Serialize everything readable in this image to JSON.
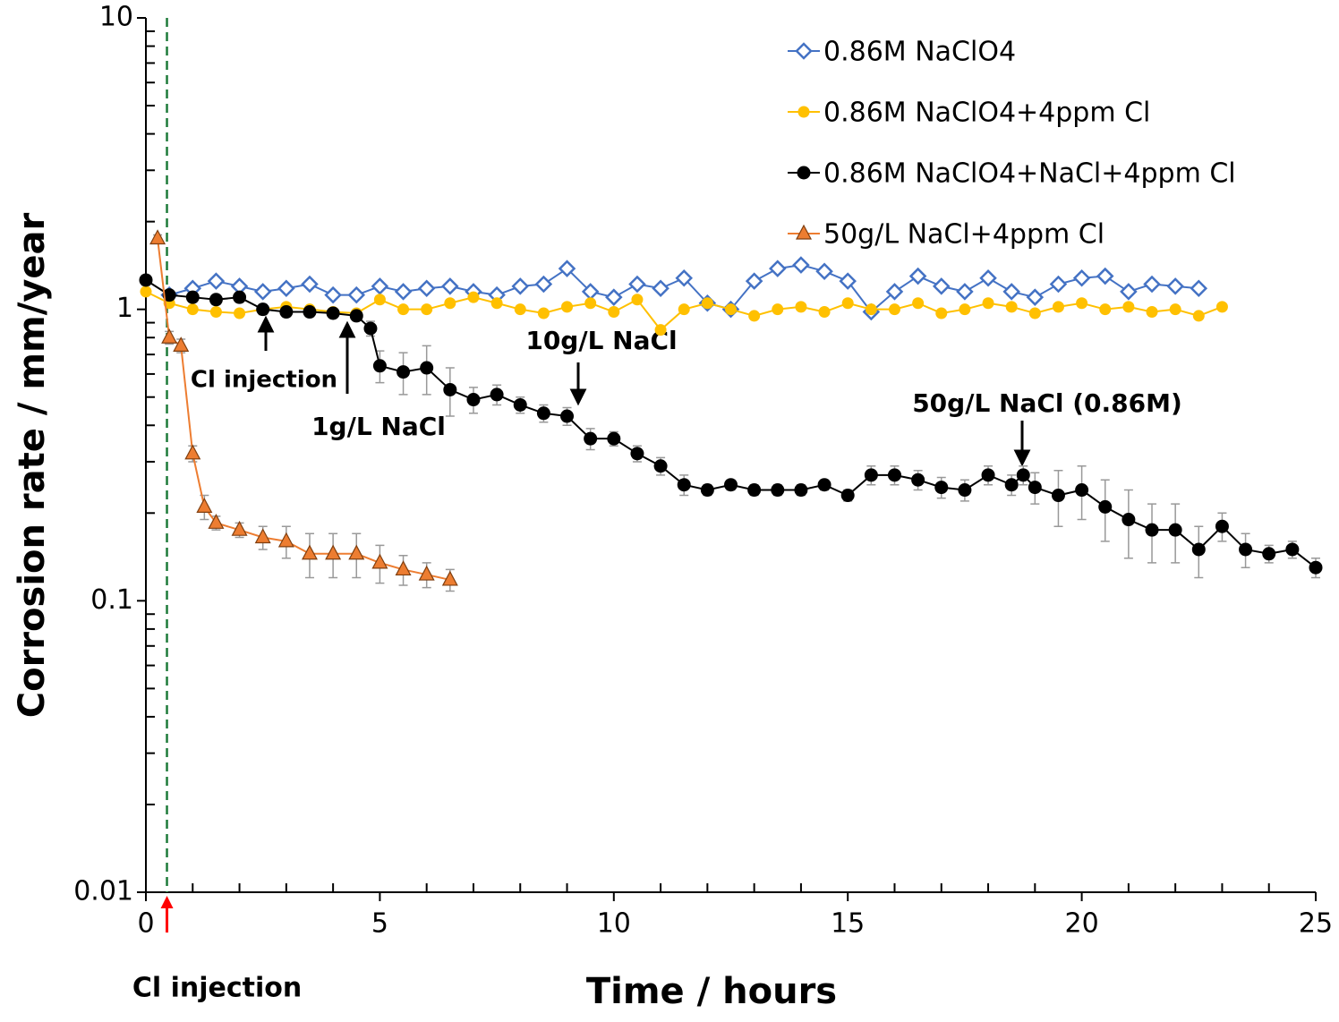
{
  "chart_data": {
    "type": "line",
    "xlabel": "Time / hours",
    "ylabel": "Corrosion rate / mm/year",
    "log_y": true,
    "xlim": [
      0,
      25
    ],
    "xticks": [
      0,
      5,
      10,
      15,
      20,
      25
    ],
    "ylim": [
      0.01,
      10
    ],
    "yticks": [
      0.01,
      0.1,
      1,
      10
    ],
    "legend": "top-right",
    "injection_line": {
      "x": 0.45,
      "color": "#1e7b3a",
      "label": "Cl injection",
      "label_color": "#ff0000"
    },
    "annotations": [
      "Cl injection",
      "1g/L NaCl",
      "10g/L NaCl",
      "50g/L NaCl (0.86M)"
    ],
    "series": [
      {
        "name": "0.86M NaClO4",
        "color": "#4472c4",
        "marker": "diamond",
        "x": [
          0.5,
          1,
          1.5,
          2,
          2.5,
          3,
          3.5,
          4,
          4.5,
          5,
          5.5,
          6,
          6.5,
          7,
          7.5,
          8,
          8.5,
          9,
          9.5,
          10,
          10.5,
          11,
          11.5,
          12,
          12.5,
          13,
          13.5,
          14,
          14.5,
          15,
          15.5,
          16,
          16.5,
          17,
          17.5,
          18,
          18.5,
          19,
          19.5,
          20,
          20.5,
          21,
          21.5,
          22,
          22.5
        ],
        "values": [
          1.12,
          1.18,
          1.25,
          1.2,
          1.15,
          1.18,
          1.22,
          1.12,
          1.12,
          1.2,
          1.15,
          1.18,
          1.2,
          1.15,
          1.12,
          1.2,
          1.22,
          1.38,
          1.15,
          1.1,
          1.22,
          1.18,
          1.28,
          1.05,
          1.0,
          1.25,
          1.38,
          1.42,
          1.35,
          1.25,
          0.98,
          1.15,
          1.3,
          1.2,
          1.15,
          1.28,
          1.15,
          1.1,
          1.22,
          1.28,
          1.3,
          1.15,
          1.22,
          1.2,
          1.18
        ]
      },
      {
        "name": "0.86M NaClO4+4ppm Cl",
        "color": "#ffc000",
        "marker": "circle",
        "x": [
          0,
          0.5,
          1,
          1.5,
          2,
          2.5,
          3,
          3.5,
          4,
          4.5,
          5,
          5.5,
          6,
          6.5,
          7,
          7.5,
          8,
          8.5,
          9,
          9.5,
          10,
          10.5,
          11,
          11.5,
          12,
          12.5,
          13,
          13.5,
          14,
          14.5,
          15,
          15.5,
          16,
          16.5,
          17,
          17.5,
          18,
          18.5,
          19,
          19.5,
          20,
          20.5,
          21,
          21.5,
          22,
          22.5,
          23
        ],
        "values": [
          1.15,
          1.05,
          1.0,
          0.98,
          0.97,
          1.0,
          1.02,
          1.0,
          0.98,
          0.97,
          1.08,
          1.0,
          1.0,
          1.05,
          1.1,
          1.05,
          1.0,
          0.97,
          1.02,
          1.05,
          0.98,
          1.08,
          0.85,
          1.0,
          1.05,
          1.0,
          0.95,
          1.0,
          1.02,
          0.98,
          1.05,
          1.0,
          1.0,
          1.05,
          0.97,
          1.0,
          1.05,
          1.02,
          0.97,
          1.02,
          1.05,
          1.0,
          1.02,
          0.98,
          1.0,
          0.95,
          1.02
        ]
      },
      {
        "name": "0.86M NaClO4+NaCl+4ppm Cl",
        "color": "#000000",
        "marker": "bigcircle",
        "x": [
          0,
          0.5,
          1,
          1.5,
          2,
          2.5,
          3,
          3.5,
          4,
          4.5,
          4.8,
          5,
          5.5,
          6,
          6.5,
          7,
          7.5,
          8,
          8.5,
          9,
          9.5,
          10,
          10.5,
          11,
          11.5,
          12,
          12.5,
          13,
          13.5,
          14,
          14.5,
          15,
          15.5,
          16,
          16.5,
          17,
          17.5,
          18,
          18.5,
          18.75,
          19,
          19.5,
          20,
          20.5,
          21,
          21.5,
          22,
          22.5,
          23,
          23.5,
          24,
          24.5,
          25
        ],
        "values": [
          1.26,
          1.12,
          1.1,
          1.08,
          1.1,
          1.0,
          0.98,
          0.98,
          0.97,
          0.95,
          0.86,
          0.64,
          0.61,
          0.63,
          0.53,
          0.49,
          0.51,
          0.47,
          0.44,
          0.43,
          0.36,
          0.36,
          0.32,
          0.29,
          0.25,
          0.24,
          0.25,
          0.24,
          0.24,
          0.24,
          0.25,
          0.23,
          0.27,
          0.27,
          0.26,
          0.245,
          0.24,
          0.27,
          0.25,
          0.27,
          0.245,
          0.23,
          0.24,
          0.21,
          0.19,
          0.175,
          0.175,
          0.15,
          0.18,
          0.15,
          0.145,
          0.15,
          0.13
        ],
        "errors": [
          0.05,
          0.04,
          0.04,
          0.04,
          0.04,
          0.04,
          0.03,
          0.03,
          0.03,
          0.03,
          0.05,
          0.08,
          0.1,
          0.12,
          0.1,
          0.05,
          0.04,
          0.03,
          0.03,
          0.03,
          0.03,
          0.02,
          0.02,
          0.02,
          0.02,
          0.01,
          0.01,
          0.01,
          0.01,
          0.01,
          0.01,
          0.01,
          0.02,
          0.02,
          0.02,
          0.02,
          0.02,
          0.02,
          0.02,
          0.02,
          0.03,
          0.05,
          0.05,
          0.05,
          0.05,
          0.04,
          0.04,
          0.03,
          0.02,
          0.02,
          0.01,
          0.01,
          0.01
        ]
      },
      {
        "name": "50g/L NaCl+4ppm Cl",
        "color": "#ed7d31",
        "marker": "triangle",
        "x": [
          0.25,
          0.5,
          0.75,
          1,
          1.25,
          1.5,
          2,
          2.5,
          3,
          3.5,
          4,
          4.5,
          5,
          5.5,
          6,
          6.5
        ],
        "values": [
          1.75,
          0.8,
          0.75,
          0.32,
          0.21,
          0.185,
          0.175,
          0.165,
          0.16,
          0.145,
          0.145,
          0.145,
          0.135,
          0.128,
          0.123,
          0.118
        ],
        "errors": [
          0.05,
          0.04,
          0.04,
          0.02,
          0.02,
          0.01,
          0.01,
          0.015,
          0.02,
          0.025,
          0.025,
          0.025,
          0.02,
          0.015,
          0.012,
          0.01
        ]
      }
    ]
  }
}
